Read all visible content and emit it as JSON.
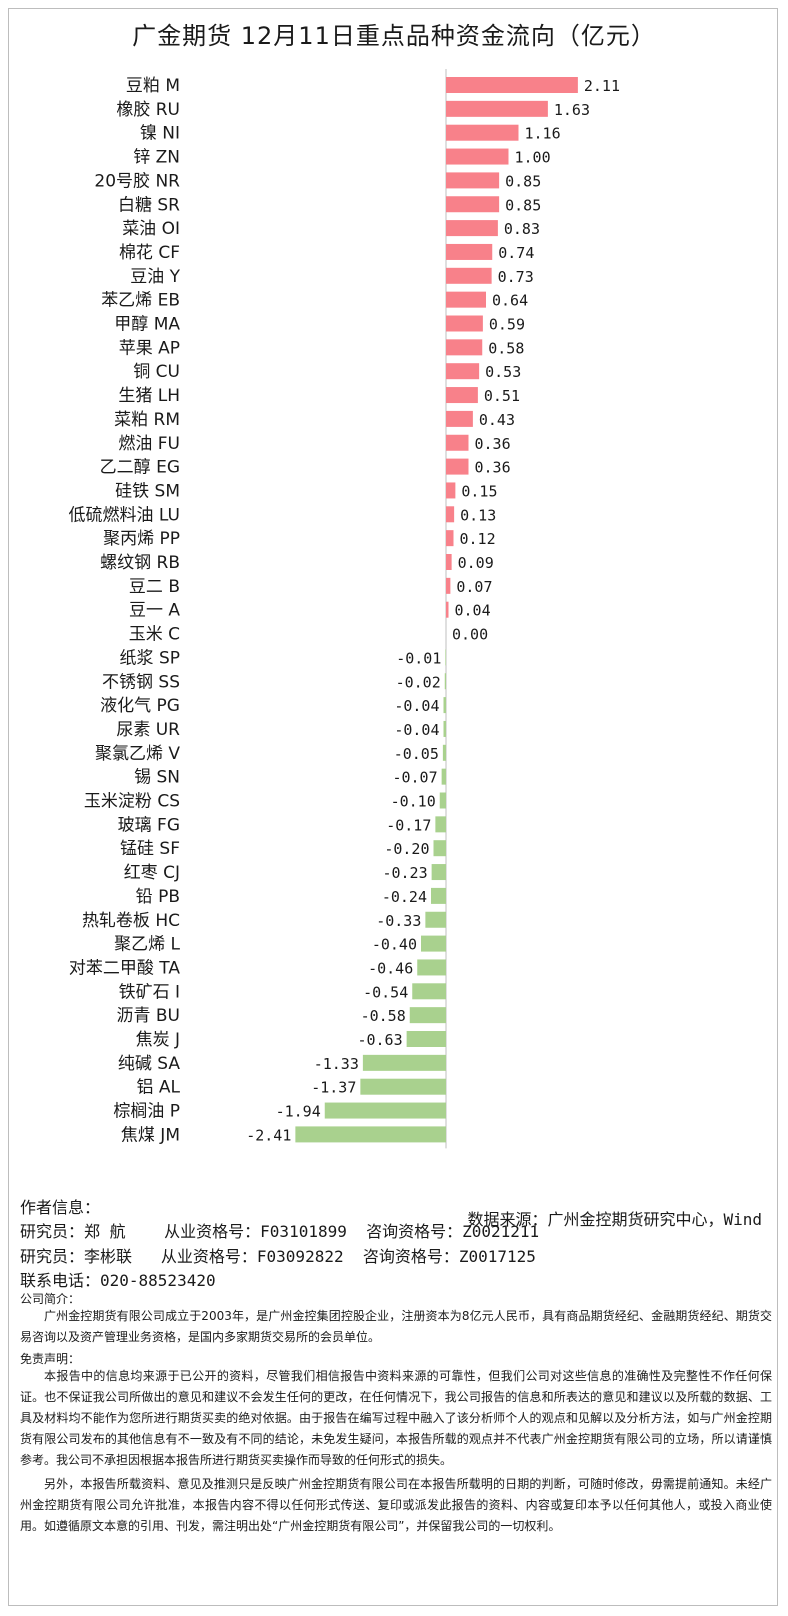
{
  "chart_data": {
    "type": "bar",
    "orientation": "horizontal",
    "title": "广金期货 12月11日重点品种资金流向（亿元）",
    "categories": [
      "豆粕 M",
      "橡胶 RU",
      "镍 NI",
      "锌 ZN",
      "20号胶 NR",
      "白糖 SR",
      "菜油 OI",
      "棉花 CF",
      "豆油 Y",
      "苯乙烯 EB",
      "甲醇 MA",
      "苹果 AP",
      "铜 CU",
      "生猪 LH",
      "菜粕 RM",
      "燃油 FU",
      "乙二醇 EG",
      "硅铁 SM",
      "低硫燃料油 LU",
      "聚丙烯 PP",
      "螺纹钢 RB",
      "豆二 B",
      "豆一 A",
      "玉米 C",
      "纸浆 SP",
      "不锈钢 SS",
      "液化气 PG",
      "尿素 UR",
      "聚氯乙烯 V",
      "锡 SN",
      "玉米淀粉 CS",
      "玻璃 FG",
      "锰硅 SF",
      "红枣 CJ",
      "铅 PB",
      "热轧卷板 HC",
      "聚乙烯 L",
      "对苯二甲酸 TA",
      "铁矿石 I",
      "沥青 BU",
      "焦炭 J",
      "纯碱 SA",
      "铝 AL",
      "棕榈油 P",
      "焦煤 JM"
    ],
    "values": [
      2.11,
      1.63,
      1.16,
      1.0,
      0.85,
      0.85,
      0.83,
      0.74,
      0.73,
      0.64,
      0.59,
      0.58,
      0.53,
      0.51,
      0.43,
      0.36,
      0.36,
      0.15,
      0.13,
      0.12,
      0.09,
      0.07,
      0.04,
      0.0,
      -0.01,
      -0.02,
      -0.04,
      -0.04,
      -0.05,
      -0.07,
      -0.1,
      -0.17,
      -0.2,
      -0.23,
      -0.24,
      -0.33,
      -0.4,
      -0.46,
      -0.54,
      -0.58,
      -0.63,
      -1.33,
      -1.37,
      -1.94,
      -2.41
    ],
    "value_labels": [
      "2.11",
      "1.63",
      "1.16",
      "1.00",
      "0.85",
      "0.85",
      "0.83",
      "0.74",
      "0.73",
      "0.64",
      "0.59",
      "0.58",
      "0.53",
      "0.51",
      "0.43",
      "0.36",
      "0.36",
      "0.15",
      "0.13",
      "0.12",
      "0.09",
      "0.07",
      "0.04",
      "0.00",
      "-0.01",
      "-0.02",
      "-0.04",
      "-0.04",
      "-0.05",
      "-0.07",
      "-0.10",
      "-0.17",
      "-0.20",
      "-0.23",
      "-0.24",
      "-0.33",
      "-0.40",
      "-0.46",
      "-0.54",
      "-0.58",
      "-0.63",
      "-1.33",
      "-1.37",
      "-1.94",
      "-2.41"
    ],
    "positive_color": "#f8818a",
    "negative_color": "#a9d18e",
    "axis_color": "#bfbfbf",
    "xlim": [
      -2.41,
      2.11
    ],
    "grid": false,
    "legend": "none"
  },
  "source": "数据来源：广州金控期货研究中心，Wind",
  "author": {
    "heading": "作者信息：",
    "researcher1": "研究员：郑 航    从业资格号：F03101899  咨询资格号：Z0021211",
    "researcher2": "研究员：李彬联   从业资格号：F03092822  咨询资格号：Z0017125",
    "phone": "联系电话：020-88523420"
  },
  "company": {
    "heading": "公司简介：",
    "text": "广州金控期货有限公司成立于2003年，是广州金控集团控股企业，注册资本为8亿元人民币，具有商品期货经纪、金融期货经纪、期货交易咨询以及资产管理业务资格，是国内多家期货交易所的会员单位。"
  },
  "disclaimer": {
    "heading": "免责声明：",
    "p1": "本报告中的信息均来源于已公开的资料，尽管我们相信报告中资料来源的可靠性，但我们公司对这些信息的准确性及完整性不作任何保证。也不保证我公司所做出的意见和建议不会发生任何的更改，在任何情况下，我公司报告的信息和所表达的意见和建议以及所载的数据、工具及材料均不能作为您所进行期货买卖的绝对依据。由于报告在编写过程中融入了该分析师个人的观点和见解以及分析方法，如与广州金控期货有限公司发布的其他信息有不一致及有不同的结论，未免发生疑问，本报告所载的观点并不代表广州金控期货有限公司的立场，所以请谨慎参考。我公司不承担因根据本报告所进行期货买卖操作而导致的任何形式的损失。",
    "p2": "另外，本报告所载资料、意见及推测只是反映广州金控期货有限公司在本报告所载明的日期的判断，可随时修改，毋需提前通知。未经广州金控期货有限公司允许批准，本报告内容不得以任何形式传送、复印或派发此报告的资料、内容或复印本予以任何其他人，或投入商业使用。如遵循原文本意的引用、刊发，需注明出处“广州金控期货有限公司”，并保留我公司的一切权利。"
  }
}
